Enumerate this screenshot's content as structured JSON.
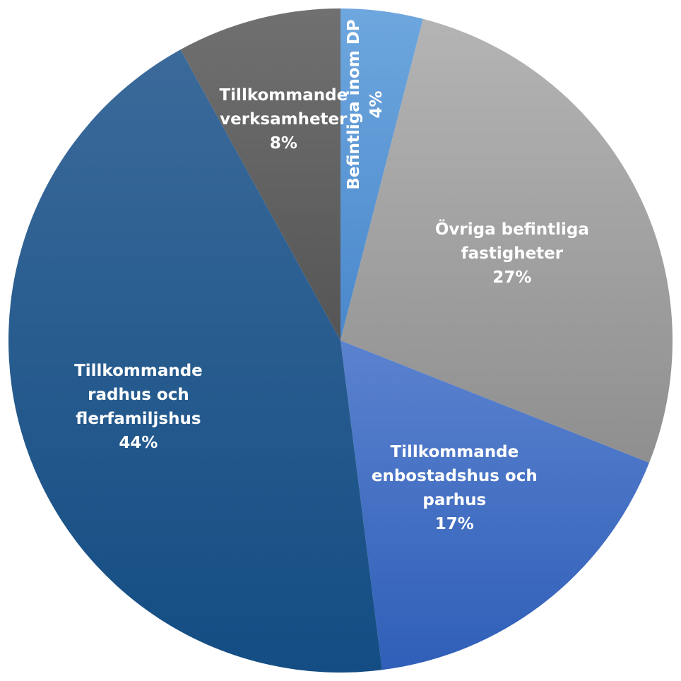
{
  "chart_data": {
    "type": "pie",
    "title": "",
    "legend": "none",
    "slices": [
      {
        "lines": [
          "Befintliga inom DP",
          "4%"
        ],
        "value": 4,
        "color": "#5b9bd5",
        "gradient": [
          "#6ea7de",
          "#4a88cc"
        ],
        "label_vertical": true
      },
      {
        "lines": [
          "Övriga befintliga",
          "fastigheter",
          "27%"
        ],
        "value": 27,
        "color": "#a5a5a5",
        "gradient": [
          "#b4b4b4",
          "#8f8f8f"
        ]
      },
      {
        "lines": [
          "Tillkommande",
          "enbostadshus och",
          "parhus",
          "17%"
        ],
        "value": 17,
        "color": "#4472c4",
        "gradient": [
          "#5b82cf",
          "#2f5fb8"
        ]
      },
      {
        "lines": [
          "Tillkommande",
          "radhus och",
          "flerfamiljshus",
          "44%"
        ],
        "value": 44,
        "color": "#255e91",
        "gradient": [
          "#3b6a9a",
          "#134d83"
        ]
      },
      {
        "lines": [
          "Tillkommande",
          "verksamheter",
          "8%"
        ],
        "value": 8,
        "color": "#636363",
        "gradient": [
          "#707070",
          "#555555"
        ]
      }
    ]
  }
}
